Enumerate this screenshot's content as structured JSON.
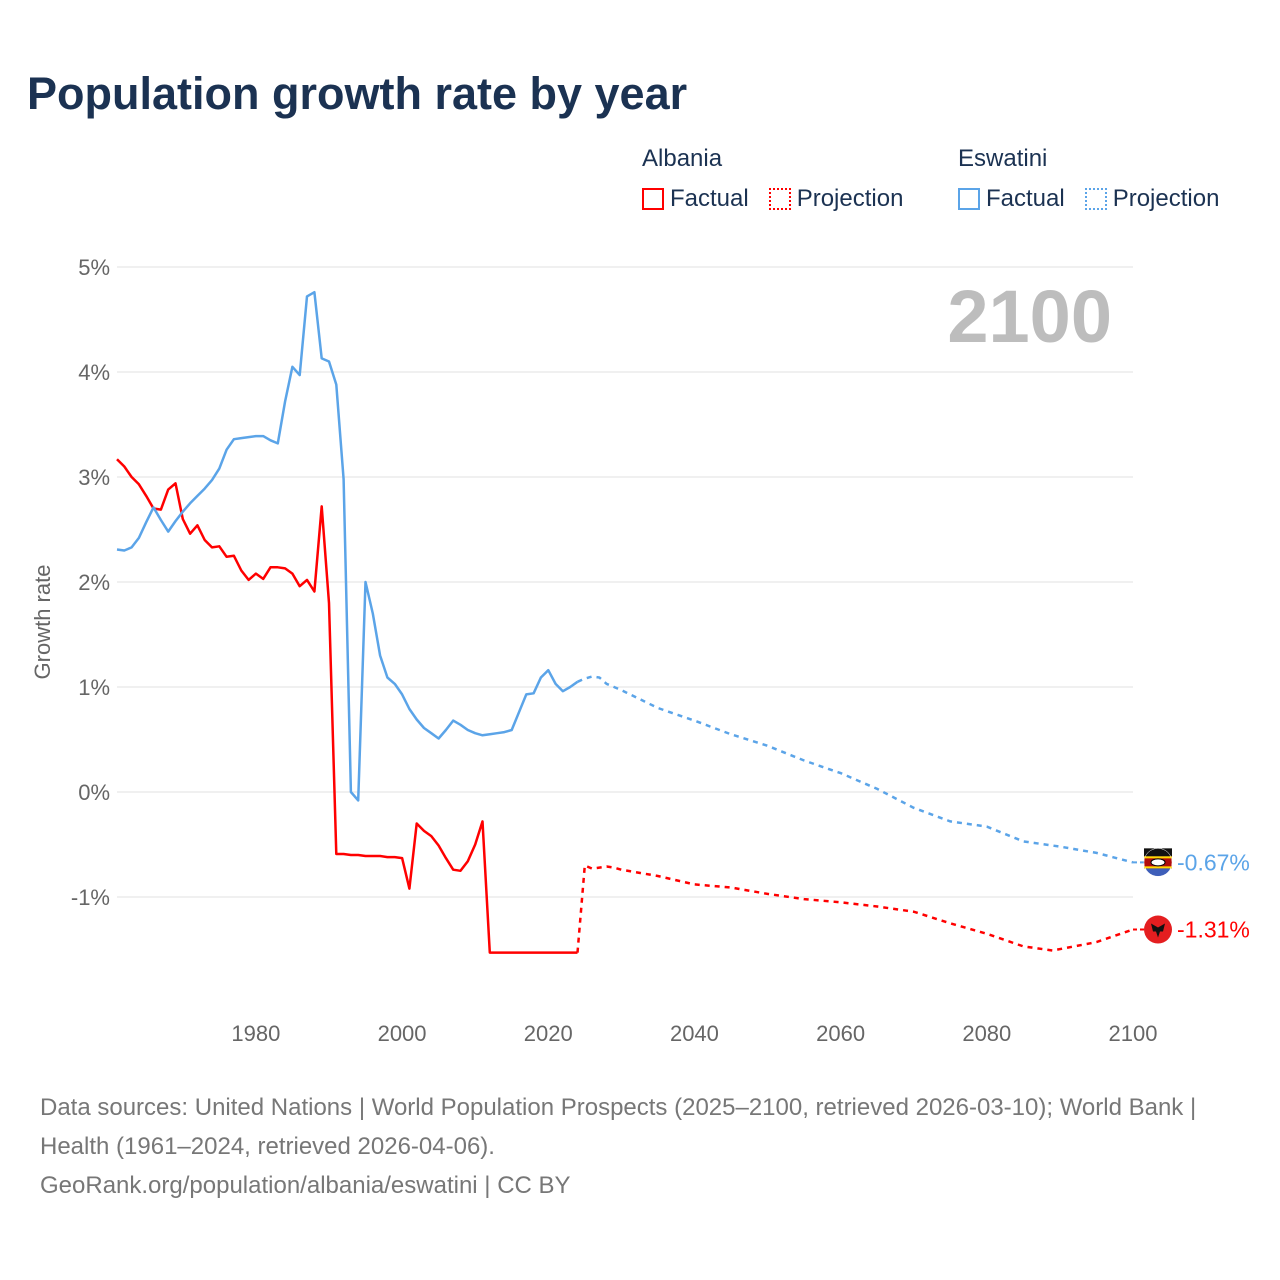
{
  "title": "Population growth rate by year",
  "legend": {
    "groups": [
      {
        "name": "Albania",
        "color": "#ff0000",
        "factual_label": "Factual",
        "projection_label": "Projection"
      },
      {
        "name": "Eswatini",
        "color": "#5ba4e8",
        "factual_label": "Factual",
        "projection_label": "Projection"
      }
    ]
  },
  "year_label": "2100",
  "footer": {
    "sources": "Data sources: United Nations | World Population Prospects (2025–2100, retrieved 2026-03-10); World Bank | Health (1961–2024, retrieved 2026-04-06).",
    "credit": "GeoRank.org/population/albania/eswatini | CC BY"
  },
  "chart_data": {
    "type": "line",
    "title": "Population growth rate by year",
    "xlabel": "",
    "ylabel": "Growth rate",
    "xlim": [
      1961,
      2100
    ],
    "ylim": [
      -2,
      5
    ],
    "xticks": [
      1980,
      2000,
      2020,
      2040,
      2060,
      2080,
      2100
    ],
    "xtick_labels": [
      "1980",
      "2000",
      "2020",
      "2040",
      "2060",
      "2080",
      "2100"
    ],
    "yticks": [
      5,
      4,
      3,
      2,
      1,
      0,
      -1
    ],
    "ytick_labels": [
      "5%",
      "4%",
      "3%",
      "2%",
      "1%",
      "0%",
      "-1%"
    ],
    "grid": true,
    "legend_position": "top-right",
    "series": [
      {
        "name": "Albania",
        "color": "#ff0000",
        "end_label": "-1.31%",
        "factual": [
          [
            1961,
            3.17
          ],
          [
            1962,
            3.1
          ],
          [
            1963,
            3.0
          ],
          [
            1964,
            2.93
          ],
          [
            1965,
            2.82
          ],
          [
            1966,
            2.7
          ],
          [
            1967,
            2.69
          ],
          [
            1968,
            2.88
          ],
          [
            1969,
            2.94
          ],
          [
            1970,
            2.6
          ],
          [
            1971,
            2.46
          ],
          [
            1972,
            2.54
          ],
          [
            1973,
            2.4
          ],
          [
            1974,
            2.33
          ],
          [
            1975,
            2.34
          ],
          [
            1976,
            2.24
          ],
          [
            1977,
            2.25
          ],
          [
            1978,
            2.11
          ],
          [
            1979,
            2.02
          ],
          [
            1980,
            2.08
          ],
          [
            1981,
            2.03
          ],
          [
            1982,
            2.14
          ],
          [
            1983,
            2.14
          ],
          [
            1984,
            2.13
          ],
          [
            1985,
            2.08
          ],
          [
            1986,
            1.96
          ],
          [
            1987,
            2.02
          ],
          [
            1988,
            1.91
          ],
          [
            1989,
            2.72
          ],
          [
            1990,
            1.8
          ],
          [
            1991,
            -0.59
          ],
          [
            1992,
            -0.59
          ],
          [
            1993,
            -0.6
          ],
          [
            1994,
            -0.6
          ],
          [
            1995,
            -0.61
          ],
          [
            1996,
            -0.61
          ],
          [
            1997,
            -0.61
          ],
          [
            1998,
            -0.62
          ],
          [
            1999,
            -0.62
          ],
          [
            2000,
            -0.63
          ],
          [
            2001,
            -0.92
          ],
          [
            2002,
            -0.3
          ],
          [
            2003,
            -0.37
          ],
          [
            2004,
            -0.42
          ],
          [
            2005,
            -0.51
          ],
          [
            2006,
            -0.63
          ],
          [
            2007,
            -0.74
          ],
          [
            2008,
            -0.75
          ],
          [
            2009,
            -0.66
          ],
          [
            2010,
            -0.5
          ],
          [
            2011,
            -0.28
          ],
          [
            2012,
            -1.53
          ],
          [
            2013,
            -1.53
          ],
          [
            2014,
            -1.53
          ],
          [
            2015,
            -1.53
          ],
          [
            2016,
            -1.53
          ],
          [
            2017,
            -1.53
          ],
          [
            2018,
            -1.53
          ],
          [
            2019,
            -1.53
          ],
          [
            2020,
            -1.53
          ],
          [
            2021,
            -1.53
          ],
          [
            2022,
            -1.53
          ],
          [
            2023,
            -1.53
          ],
          [
            2024,
            -1.53
          ]
        ],
        "projection": [
          [
            2024,
            -1.53
          ],
          [
            2025,
            -0.7
          ],
          [
            2026,
            -0.73
          ],
          [
            2027,
            -0.72
          ],
          [
            2028,
            -0.71
          ],
          [
            2029,
            -0.72
          ],
          [
            2030,
            -0.74
          ],
          [
            2035,
            -0.8
          ],
          [
            2040,
            -0.88
          ],
          [
            2045,
            -0.91
          ],
          [
            2050,
            -0.97
          ],
          [
            2055,
            -1.02
          ],
          [
            2060,
            -1.05
          ],
          [
            2065,
            -1.09
          ],
          [
            2070,
            -1.14
          ],
          [
            2075,
            -1.25
          ],
          [
            2080,
            -1.35
          ],
          [
            2085,
            -1.47
          ],
          [
            2089,
            -1.51
          ],
          [
            2095,
            -1.43
          ],
          [
            2100,
            -1.31
          ]
        ]
      },
      {
        "name": "Eswatini",
        "color": "#5ba4e8",
        "end_label": "-0.67%",
        "factual": [
          [
            1961,
            2.31
          ],
          [
            1962,
            2.3
          ],
          [
            1963,
            2.33
          ],
          [
            1964,
            2.42
          ],
          [
            1965,
            2.57
          ],
          [
            1966,
            2.71
          ],
          [
            1967,
            2.59
          ],
          [
            1968,
            2.48
          ],
          [
            1969,
            2.58
          ],
          [
            1970,
            2.67
          ],
          [
            1971,
            2.75
          ],
          [
            1972,
            2.82
          ],
          [
            1973,
            2.89
          ],
          [
            1974,
            2.97
          ],
          [
            1975,
            3.08
          ],
          [
            1976,
            3.26
          ],
          [
            1977,
            3.36
          ],
          [
            1978,
            3.37
          ],
          [
            1979,
            3.38
          ],
          [
            1980,
            3.39
          ],
          [
            1981,
            3.39
          ],
          [
            1982,
            3.35
          ],
          [
            1983,
            3.32
          ],
          [
            1984,
            3.72
          ],
          [
            1985,
            4.05
          ],
          [
            1986,
            3.97
          ],
          [
            1987,
            4.72
          ],
          [
            1988,
            4.76
          ],
          [
            1989,
            4.13
          ],
          [
            1990,
            4.1
          ],
          [
            1991,
            3.88
          ],
          [
            1992,
            2.98
          ],
          [
            1993,
            0.0
          ],
          [
            1994,
            -0.08
          ],
          [
            1995,
            2.0
          ],
          [
            1996,
            1.7
          ],
          [
            1997,
            1.3
          ],
          [
            1998,
            1.09
          ],
          [
            1999,
            1.03
          ],
          [
            2000,
            0.93
          ],
          [
            2001,
            0.79
          ],
          [
            2002,
            0.69
          ],
          [
            2003,
            0.61
          ],
          [
            2004,
            0.56
          ],
          [
            2005,
            0.51
          ],
          [
            2006,
            0.59
          ],
          [
            2007,
            0.68
          ],
          [
            2008,
            0.64
          ],
          [
            2009,
            0.59
          ],
          [
            2010,
            0.56
          ],
          [
            2011,
            0.54
          ],
          [
            2012,
            0.55
          ],
          [
            2013,
            0.56
          ],
          [
            2014,
            0.57
          ],
          [
            2015,
            0.59
          ],
          [
            2016,
            0.76
          ],
          [
            2017,
            0.93
          ],
          [
            2018,
            0.94
          ],
          [
            2019,
            1.09
          ],
          [
            2020,
            1.16
          ],
          [
            2021,
            1.03
          ],
          [
            2022,
            0.96
          ],
          [
            2023,
            1.0
          ],
          [
            2024,
            1.05
          ]
        ],
        "projection": [
          [
            2024,
            1.05
          ],
          [
            2025,
            1.08
          ],
          [
            2026,
            1.1
          ],
          [
            2027,
            1.09
          ],
          [
            2028,
            1.03
          ],
          [
            2030,
            0.97
          ],
          [
            2035,
            0.8
          ],
          [
            2040,
            0.68
          ],
          [
            2045,
            0.55
          ],
          [
            2050,
            0.44
          ],
          [
            2055,
            0.3
          ],
          [
            2060,
            0.18
          ],
          [
            2065,
            0.03
          ],
          [
            2070,
            -0.15
          ],
          [
            2075,
            -0.28
          ],
          [
            2080,
            -0.33
          ],
          [
            2085,
            -0.47
          ],
          [
            2090,
            -0.52
          ],
          [
            2095,
            -0.58
          ],
          [
            2100,
            -0.67
          ]
        ]
      }
    ]
  }
}
